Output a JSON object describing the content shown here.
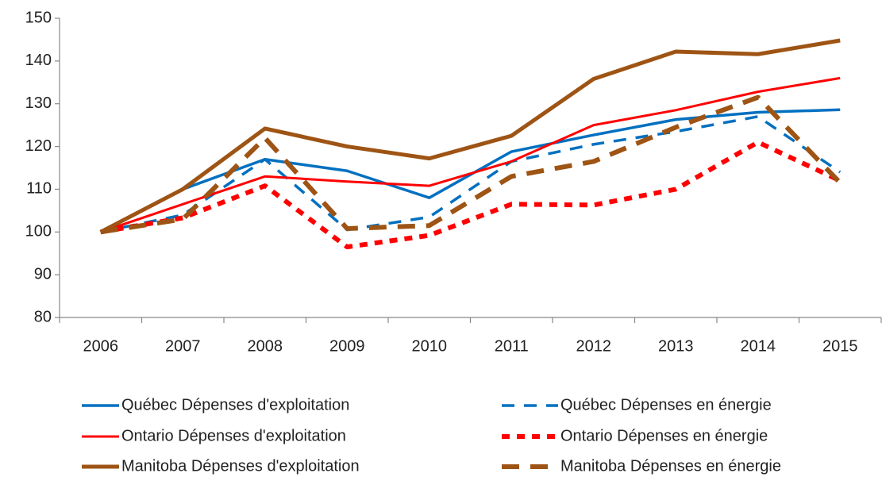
{
  "chart_data": {
    "type": "line",
    "categories": [
      "2006",
      "2007",
      "2008",
      "2009",
      "2010",
      "2011",
      "2012",
      "2013",
      "2014",
      "2015"
    ],
    "ylim": [
      80,
      150
    ],
    "yticks": [
      80,
      90,
      100,
      110,
      120,
      130,
      140,
      150
    ],
    "grid": false,
    "legend": "bottom",
    "series": [
      {
        "name": "Québec Dépenses d'exploitation",
        "color": "#0070c0",
        "dashed": false,
        "values": [
          100,
          110,
          117,
          114.3,
          108,
          118.8,
          122.7,
          126.3,
          128,
          128.6
        ]
      },
      {
        "name": "Québec Dépenses en énergie",
        "color": "#0070c0",
        "dashed": true,
        "values": [
          100,
          104,
          117,
          100.5,
          103.5,
          116.5,
          120.5,
          123.5,
          127,
          114
        ]
      },
      {
        "name": "Ontario Dépenses d'exploitation",
        "color": "#ff0000",
        "dashed": false,
        "values": [
          100,
          106.5,
          113,
          111.8,
          110.8,
          116.5,
          125,
          128.5,
          132.8,
          136
        ]
      },
      {
        "name": "Ontario Dépenses en énergie",
        "color": "#ff0000",
        "dashed": true,
        "values": [
          100,
          103.3,
          110.8,
          96.5,
          99.2,
          106.5,
          106.3,
          110,
          121,
          112
        ]
      },
      {
        "name": "Manitoba Dépenses d'exploitation",
        "color": "#9e5414",
        "dashed": false,
        "values": [
          100,
          110,
          124.2,
          120,
          117.2,
          122.5,
          135.8,
          142.2,
          141.6,
          144.8
        ]
      },
      {
        "name": "Manitoba Dépenses en énergie",
        "color": "#9e5414",
        "dashed": true,
        "values": [
          100,
          103,
          122,
          100.8,
          101.5,
          113,
          116.5,
          124.5,
          131.5,
          111.5
        ]
      }
    ]
  }
}
